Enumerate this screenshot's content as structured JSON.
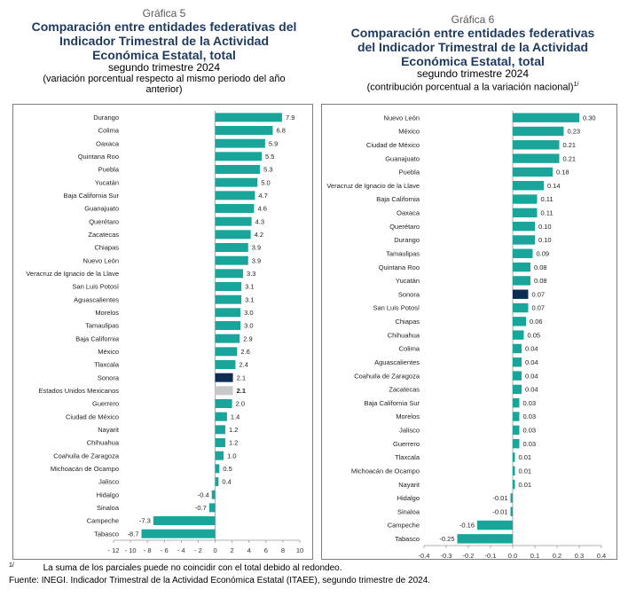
{
  "charts": [
    {
      "number": "Gráfica 5",
      "title_lines": [
        "Comparación entre entidades federativas del",
        "Indicador Trimestral de la Actividad",
        "Económica Estatal, total"
      ],
      "subtitle": "segundo trimestre 2024",
      "subtitle2_lines": [
        "(variación porcentual respecto al mismo periodo del año",
        "anterior)"
      ],
      "subtitle2_sup": ""
    },
    {
      "number": "Gráfica 6",
      "title_lines": [
        "Comparación entre entidades federativas",
        "del Indicador Trimestral de la Actividad",
        "Económica Estatal, total"
      ],
      "subtitle": "segundo trimestre 2024",
      "subtitle2_lines": [
        "(contribución porcentual a la variación nacional)"
      ],
      "subtitle2_sup": "1/"
    }
  ],
  "chart_data": [
    {
      "type": "bar",
      "orientation": "horizontal",
      "title": "Comparación entre entidades federativas del Indicador Trimestral de la Actividad Económica Estatal, total",
      "categories": [
        "Durango",
        "Colima",
        "Oaxaca",
        "Quintana Roo",
        "Puebla",
        "Yucatán",
        "Baja California Sur",
        "Guanajuato",
        "Querétaro",
        "Zacatecas",
        "Chiapas",
        "Nuevo León",
        "Veracruz de Ignacio de la Llave",
        "San Luis Potosí",
        "Aguascalientes",
        "Morelos",
        "Tamaulipas",
        "Baja California",
        "México",
        "Tlaxcala",
        "Sonora",
        "Estados Unidos Mexicanos",
        "Guerrero",
        "Ciudad de México",
        "Nayarit",
        "Chihuahua",
        "Coahuila de Zaragoza",
        "Michoacán de Ocampo",
        "Jalisco",
        "Hidalgo",
        "Sinaloa",
        "Campeche",
        "Tabasco"
      ],
      "values": [
        7.9,
        6.8,
        5.9,
        5.5,
        5.3,
        5.0,
        4.7,
        4.6,
        4.3,
        4.2,
        3.9,
        3.9,
        3.3,
        3.1,
        3.1,
        3.0,
        3.0,
        2.9,
        2.6,
        2.4,
        2.1,
        2.1,
        2.0,
        1.4,
        1.2,
        1.2,
        1.0,
        0.5,
        0.4,
        -0.4,
        -0.7,
        -7.3,
        -8.7
      ],
      "labels": [
        "7.9",
        "6.8",
        "5.9",
        "5.5",
        "5.3",
        "5.0",
        "4.7",
        "4.6",
        "4.3",
        "4.2",
        "3.9",
        "3.9",
        "3.3",
        "3.1",
        "3.1",
        "3.0",
        "3.0",
        "2.9",
        "2.6",
        "2.4",
        "2.1",
        "2.1",
        "2.0",
        "1.4",
        "1.2",
        "1.2",
        "1.0",
        "0.5",
        "0.4",
        "-0.4",
        "-0.7",
        "-7.3",
        "-8.7"
      ],
      "highlight": {
        "Sonora": "#0d2d52",
        "Estados Unidos Mexicanos": "#c8c8c8"
      },
      "bold_labels": [
        "Estados Unidos Mexicanos"
      ],
      "xlim": [
        -12,
        10
      ],
      "ticks": [
        -12,
        -10,
        -8,
        -6,
        -4,
        -2,
        0,
        2,
        4,
        6,
        8,
        10
      ],
      "tick_labels": [
        "- 12",
        "- 10",
        "- 8",
        "- 6",
        "- 4",
        "- 2",
        "0",
        "2",
        "4",
        "6",
        "8",
        "10"
      ],
      "bar_color": "#1aa59b"
    },
    {
      "type": "bar",
      "orientation": "horizontal",
      "title": "Comparación entre entidades federativas del Indicador Trimestral de la Actividad Económica Estatal, total",
      "categories": [
        "Nuevo León",
        "México",
        "Ciudad de México",
        "Guanajuato",
        "Puebla",
        "Veracruz de Ignacio de la Llave",
        "Baja California",
        "Oaxaca",
        "Querétaro",
        "Durango",
        "Tamaulipas",
        "Quintana Roo",
        "Yucatán",
        "Sonora",
        "San Luis Potosí",
        "Chiapas",
        "Chihuahua",
        "Colima",
        "Aguascalientes",
        "Coahuila de Zaragoza",
        "Zacatecas",
        "Baja California Sur",
        "Morelos",
        "Jalisco",
        "Guerrero",
        "Tlaxcala",
        "Michoacán de Ocampo",
        "Nayarit",
        "Hidalgo",
        "Sinaloa",
        "Campeche",
        "Tabasco"
      ],
      "values": [
        0.3,
        0.23,
        0.21,
        0.21,
        0.18,
        0.14,
        0.11,
        0.11,
        0.1,
        0.1,
        0.09,
        0.08,
        0.08,
        0.07,
        0.07,
        0.06,
        0.05,
        0.04,
        0.04,
        0.04,
        0.04,
        0.03,
        0.03,
        0.03,
        0.03,
        0.01,
        0.01,
        0.01,
        -0.01,
        -0.01,
        -0.16,
        -0.25
      ],
      "labels": [
        "0.30",
        "0.23",
        "0.21",
        "0.21",
        "0.18",
        "0.14",
        "0.11",
        "0.11",
        "0.10",
        "0.10",
        "0.09",
        "0.08",
        "0.08",
        "0.07",
        "0.07",
        "0.06",
        "0.05",
        "0.04",
        "0.04",
        "0.04",
        "0.04",
        "0.03",
        "0.03",
        "0.03",
        "0.03",
        "0.01",
        "0.01",
        "0.01",
        "-0.01",
        "-0.01",
        "-0.16",
        "-0.25"
      ],
      "highlight": {
        "Sonora": "#0d2d52"
      },
      "bold_labels": [],
      "xlim": [
        -0.4,
        0.4
      ],
      "ticks": [
        -0.4,
        -0.3,
        -0.2,
        -0.1,
        0,
        0.1,
        0.2,
        0.3,
        0.4
      ],
      "tick_labels": [
        "-0.4",
        "-0.3",
        "-0.2",
        "-0.1",
        "0.0",
        "0.1",
        "0.2",
        "0.3",
        "0.4"
      ],
      "bar_color": "#1aa59b"
    }
  ],
  "footnotes": {
    "note_marker": "1/",
    "note_text": "La suma de los parciales puede no coincidir con el total debido al redondeo.",
    "source": "Fuente: INEGI. Indicador Trimestral de la Actividad Económica Estatal (ITAEE), segundo trimestre de 2024."
  }
}
